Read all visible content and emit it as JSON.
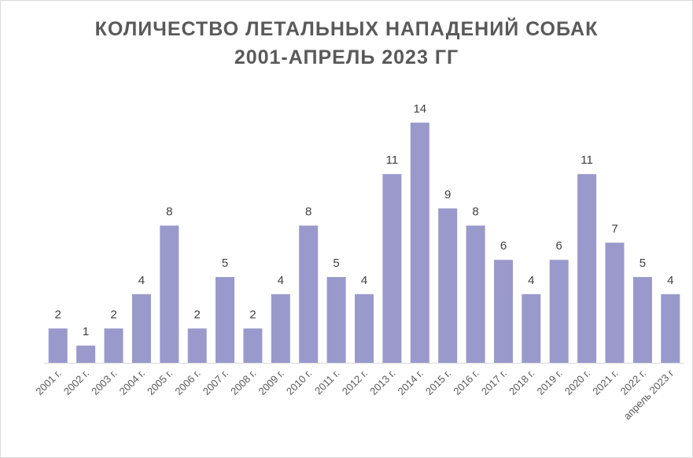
{
  "colors": {
    "bar": "#9999cc",
    "title": "#595959",
    "axis": "#d9d9d9",
    "label": "#404040"
  },
  "chart_data": {
    "type": "bar",
    "title_lines": [
      "КОЛИЧЕСТВО ЛЕТАЛЬНЫХ НАПАДЕНИЙ СОБАК",
      "2001-АПРЕЛЬ 2023 ГГ"
    ],
    "title": "КОЛИЧЕСТВО ЛЕТАЛЬНЫХ НАПАДЕНИЙ СОБАК 2001-АПРЕЛЬ 2023 ГГ",
    "categories": [
      "2001 г.",
      "2002 г.",
      "2003 г.",
      "2004 г.",
      "2005 г.",
      "2006 г.",
      "2007 г.",
      "2008 г.",
      "2009 г.",
      "2010 г.",
      "2011 г.",
      "2012 г.",
      "2013 г.",
      "2014 г.",
      "2015 г.",
      "2016 г.",
      "2017 г.",
      "2018 г.",
      "2019 г.",
      "2020 г.",
      "2021 г.",
      "2022 г.",
      "апрель 2023 г"
    ],
    "values": [
      2,
      1,
      2,
      4,
      8,
      2,
      5,
      2,
      4,
      8,
      5,
      4,
      11,
      14,
      9,
      8,
      6,
      4,
      6,
      11,
      7,
      5,
      4
    ],
    "ylim": [
      0,
      14
    ],
    "grid": false,
    "legend": "none",
    "data_labels": true
  }
}
